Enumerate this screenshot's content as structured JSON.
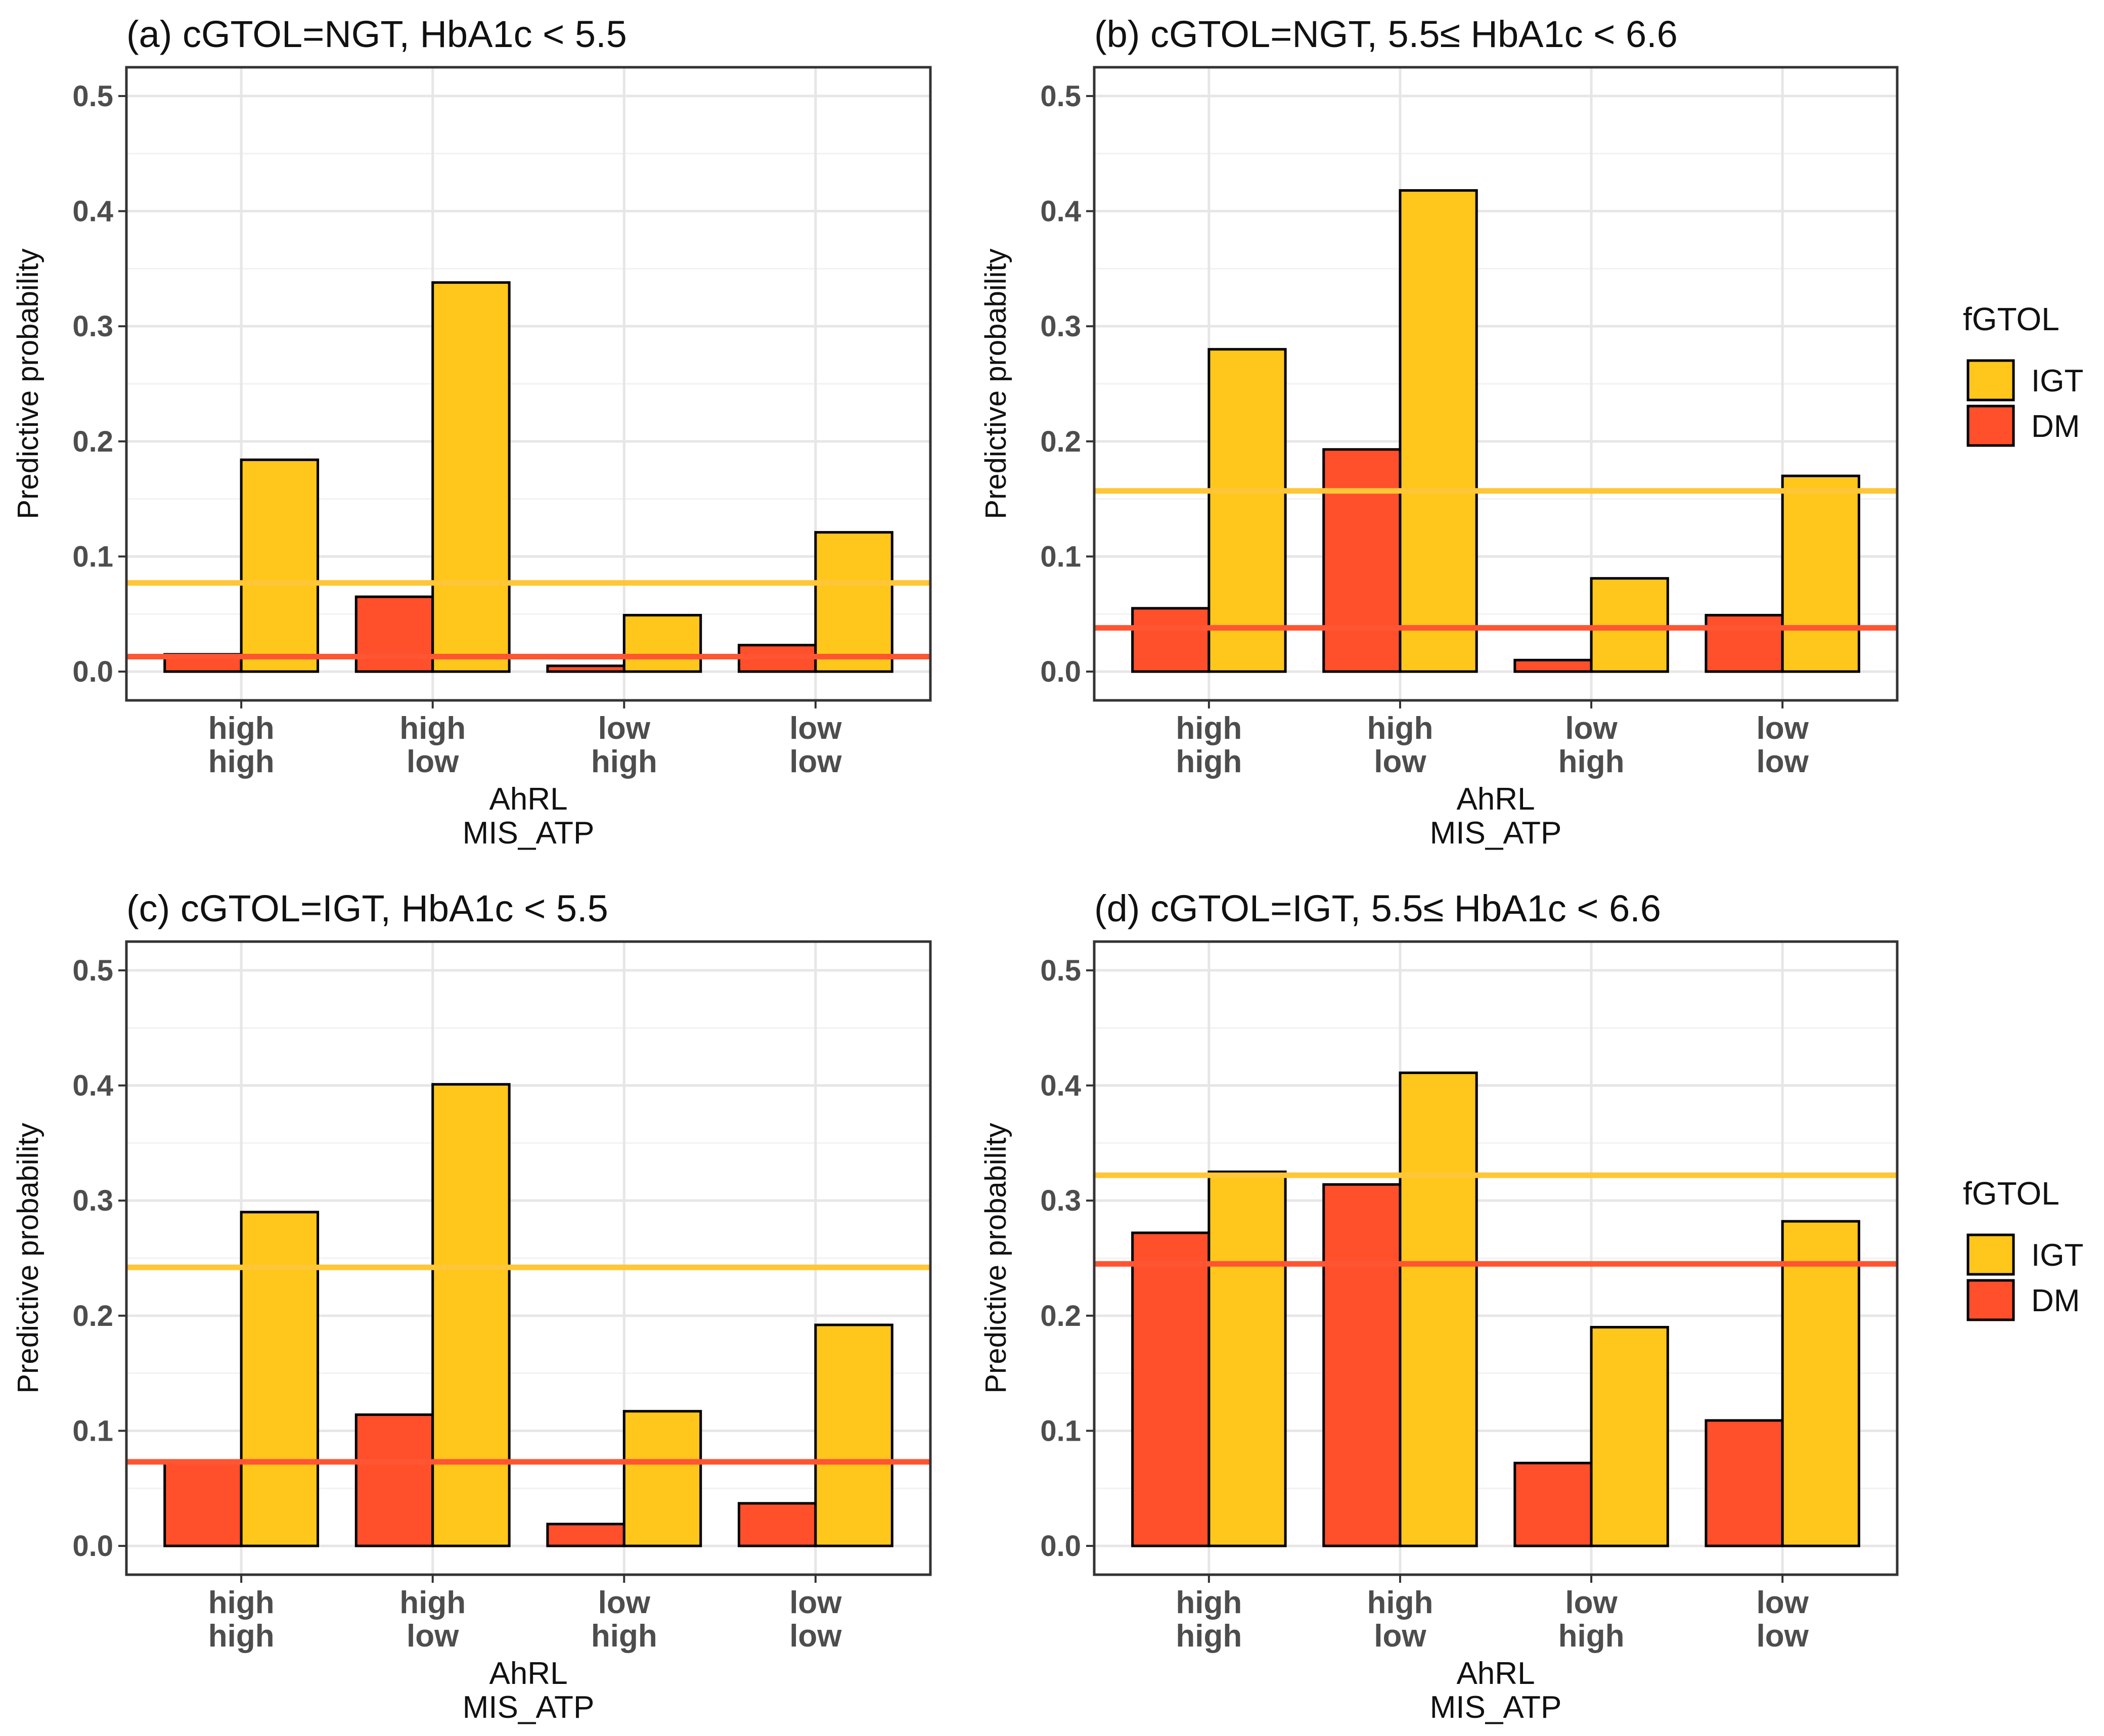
{
  "figure": {
    "legend": {
      "title": "fGTOL",
      "entries": [
        {
          "label": "IGT",
          "color": "#FFC61C"
        },
        {
          "label": "DM",
          "color": "#FF4F2B"
        }
      ]
    },
    "x_axis_titles": [
      "AhRL",
      "MIS_ATP"
    ],
    "y_axis_title": "Predictive probability"
  },
  "chart_data": [
    {
      "type": "bar",
      "title": "(a) cGTOL=NGT, HbA1c < 5.5",
      "categories": [
        [
          "high",
          "high"
        ],
        [
          "high",
          "low"
        ],
        [
          "low",
          "high"
        ],
        [
          "low",
          "low"
        ]
      ],
      "series": [
        {
          "name": "DM",
          "values": [
            0.015,
            0.065,
            0.005,
            0.023
          ],
          "color": "#FF4F2B"
        },
        {
          "name": "IGT",
          "values": [
            0.184,
            0.338,
            0.049,
            0.121
          ],
          "color": "#FFC61C"
        }
      ],
      "reference_lines": [
        {
          "series": "IGT",
          "value": 0.077,
          "color": "#FFC637"
        },
        {
          "series": "DM",
          "value": 0.013,
          "color": "#FF5533"
        }
      ],
      "xlabel": "AhRL MIS_ATP",
      "ylabel": "Predictive probability",
      "ylim": [
        -0.025,
        0.525
      ],
      "yticks": [
        "0.0",
        "0.1",
        "0.2",
        "0.3",
        "0.4",
        "0.5"
      ],
      "grid": true,
      "legend": "none"
    },
    {
      "type": "bar",
      "title": "(b) cGTOL=NGT, 5.5≤ HbA1c < 6.6",
      "categories": [
        [
          "high",
          "high"
        ],
        [
          "high",
          "low"
        ],
        [
          "low",
          "high"
        ],
        [
          "low",
          "low"
        ]
      ],
      "series": [
        {
          "name": "DM",
          "values": [
            0.055,
            0.193,
            0.01,
            0.049
          ],
          "color": "#FF4F2B"
        },
        {
          "name": "IGT",
          "values": [
            0.28,
            0.418,
            0.081,
            0.17
          ],
          "color": "#FFC61C"
        }
      ],
      "reference_lines": [
        {
          "series": "IGT",
          "value": 0.157,
          "color": "#FFC637"
        },
        {
          "series": "DM",
          "value": 0.038,
          "color": "#FF5533"
        }
      ],
      "xlabel": "AhRL MIS_ATP",
      "ylabel": "Predictive probability",
      "ylim": [
        -0.025,
        0.525
      ],
      "yticks": [
        "0.0",
        "0.1",
        "0.2",
        "0.3",
        "0.4",
        "0.5"
      ],
      "grid": true,
      "legend": "right"
    },
    {
      "type": "bar",
      "title": "(c) cGTOL=IGT,  HbA1c < 5.5",
      "categories": [
        [
          "high",
          "high"
        ],
        [
          "high",
          "low"
        ],
        [
          "low",
          "high"
        ],
        [
          "low",
          "low"
        ]
      ],
      "series": [
        {
          "name": "DM",
          "values": [
            0.073,
            0.114,
            0.019,
            0.037
          ],
          "color": "#FF4F2B"
        },
        {
          "name": "IGT",
          "values": [
            0.29,
            0.401,
            0.117,
            0.192
          ],
          "color": "#FFC61C"
        }
      ],
      "reference_lines": [
        {
          "series": "IGT",
          "value": 0.242,
          "color": "#FFC637"
        },
        {
          "series": "DM",
          "value": 0.073,
          "color": "#FF5533"
        }
      ],
      "xlabel": "AhRL MIS_ATP",
      "ylabel": "Predictive probability",
      "ylim": [
        -0.025,
        0.525
      ],
      "yticks": [
        "0.0",
        "0.1",
        "0.2",
        "0.3",
        "0.4",
        "0.5"
      ],
      "grid": true,
      "legend": "none"
    },
    {
      "type": "bar",
      "title": "(d) cGTOL=IGT, 5.5≤ HbA1c < 6.6",
      "categories": [
        [
          "high",
          "high"
        ],
        [
          "high",
          "low"
        ],
        [
          "low",
          "high"
        ],
        [
          "low",
          "low"
        ]
      ],
      "series": [
        {
          "name": "DM",
          "values": [
            0.272,
            0.314,
            0.072,
            0.109
          ],
          "color": "#FF4F2B"
        },
        {
          "name": "IGT",
          "values": [
            0.325,
            0.411,
            0.19,
            0.282
          ],
          "color": "#FFC61C"
        }
      ],
      "reference_lines": [
        {
          "series": "IGT",
          "value": 0.322,
          "color": "#FFC637"
        },
        {
          "series": "DM",
          "value": 0.245,
          "color": "#FF5533"
        }
      ],
      "xlabel": "AhRL MIS_ATP",
      "ylabel": "Predictive probability",
      "ylim": [
        -0.025,
        0.525
      ],
      "yticks": [
        "0.0",
        "0.1",
        "0.2",
        "0.3",
        "0.4",
        "0.5"
      ],
      "grid": true,
      "legend": "right"
    }
  ]
}
